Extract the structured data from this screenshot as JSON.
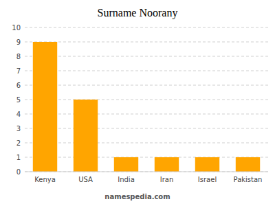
{
  "chart_data": {
    "type": "bar",
    "title": "Surname Noorany",
    "categories": [
      "Kenya",
      "USA",
      "India",
      "Iran",
      "Israel",
      "Pakistan"
    ],
    "values": [
      9,
      5,
      1,
      1,
      1,
      1
    ],
    "color": "#FFA500",
    "ylim": [
      0,
      10
    ],
    "yticks": [
      0,
      1,
      2,
      3,
      4,
      5,
      6,
      7,
      8,
      9,
      10
    ],
    "grid": true,
    "annotations": [
      "namespedia.com"
    ]
  }
}
